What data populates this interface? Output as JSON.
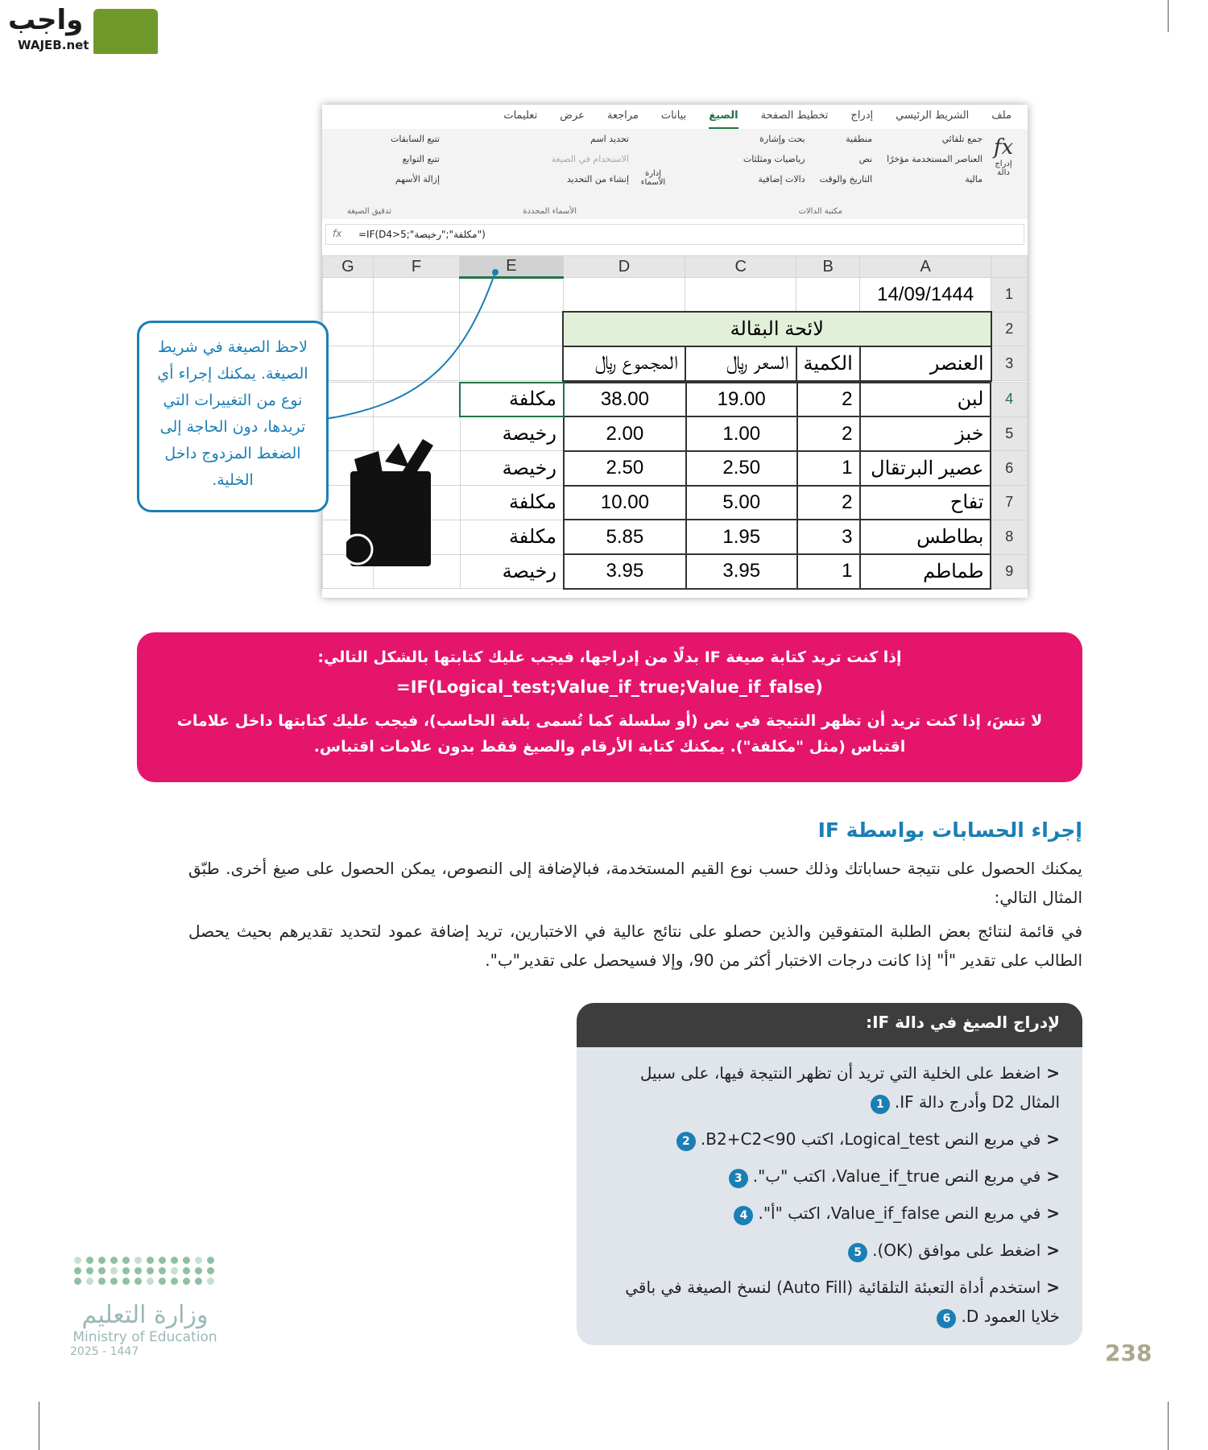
{
  "logo": {
    "arabic": "واجب",
    "latin": "WAJEB.net"
  },
  "excel": {
    "tabs": [
      "ملف",
      "الشريط الرئيسي",
      "إدراج",
      "تخطيط الصفحة",
      "الصيغ",
      "بيانات",
      "مراجعة",
      "عرض",
      "تعليمات"
    ],
    "active_tab": "الصيغ",
    "ribbon": {
      "insert_function": "إدراج دالة",
      "library": [
        "جمع تلقائي",
        "العناصر المستخدمة مؤخرًا",
        "مالية",
        "منطقية",
        "نص",
        "التاريخ والوقت",
        "بحث وإشارة",
        "رياضيات ومثلثات",
        "دالات إضافية"
      ],
      "library_label": "مكتبة الدالات",
      "name_manager": "إدارة الأسماء",
      "names": [
        "تحديد اسم",
        "الاستخدام في الصيغة",
        "إنشاء من التحديد"
      ],
      "names_label": "الأسماء المحددة",
      "audit": [
        "تتبع السابقات",
        "تتبع التوابع",
        "إزالة الأسهم"
      ],
      "audit_label": "تدقيق الصيغة"
    },
    "formula": "=IF(D4>5;\"مكلفة\";\"رخيصة\")",
    "columns": [
      "G",
      "F",
      "E",
      "D",
      "C",
      "B",
      "A"
    ],
    "date": "14/09/1444",
    "sheet_title": "لائحة البقالة",
    "headers": {
      "item": "العنصر",
      "qty": "الكمية",
      "price": "السعر ﷼",
      "total": "المجموع ﷼"
    },
    "rows": [
      {
        "n": "4",
        "item": "لبن",
        "qty": "2",
        "price": "19.00",
        "total": "38.00",
        "e": "مكلفة"
      },
      {
        "n": "5",
        "item": "خبز",
        "qty": "2",
        "price": "1.00",
        "total": "2.00",
        "e": "رخيصة"
      },
      {
        "n": "6",
        "item": "عصير البرتقال",
        "qty": "1",
        "price": "2.50",
        "total": "2.50",
        "e": "رخيصة"
      },
      {
        "n": "7",
        "item": "تفاح",
        "qty": "2",
        "price": "5.00",
        "total": "10.00",
        "e": "مكلفة"
      },
      {
        "n": "8",
        "item": "بطاطس",
        "qty": "3",
        "price": "1.95",
        "total": "5.85",
        "e": "مكلفة"
      },
      {
        "n": "9",
        "item": "طماطم",
        "qty": "1",
        "price": "3.95",
        "total": "3.95",
        "e": "رخيصة"
      }
    ],
    "row_numbers": [
      "1",
      "2",
      "3"
    ]
  },
  "callout": "لاحظ الصيغة في شريط الصيغة. يمكنك إجراء أي نوع من التغييرات التي تريدها، دون الحاجة إلى الضغط المزدوج داخل الخلية.",
  "note": {
    "line1": "إذا كنت تريد كتابة صيغة IF بدلًا من إدراجها، فيجب عليك كتابتها بالشكل التالي:",
    "formula": "=IF(Logical_test;Value_if_true;Value_if_false)",
    "line3": "لا تنسَ، إذا كنت تريد أن تظهر النتيجة في نص (أو سلسلة كما تُسمى بلغة الحاسب)، فيجب عليك كتابتها داخل علامات اقتباس (مثل \"مكلفة\"). يمكنك كتابة الأرقام والصيغ فقط بدون علامات اقتباس."
  },
  "section": {
    "title": "إجراء الحسابات بواسطة IF",
    "p1": "يمكنك الحصول على نتيجة حساباتك وذلك حسب نوع القيم المستخدمة، فبالإضافة إلى النصوص، يمكن الحصول على صيغ أخرى. طبّق المثال التالي:",
    "p2": "في قائمة لنتائج بعض الطلبة المتفوقين والذين حصلو على نتائج عالية في الاختبارين، تريد إضافة عمود لتحديد تقديرهم بحيث يحصل الطالب على تقدير \"أ\" إذا كانت درجات الاختبار أكثر من 90، وإلا فسيحصل على تقدير\"ب\"."
  },
  "steps": {
    "title": "لإدراج الصيغ في دالة IF:",
    "items": [
      {
        "text": "اضغط على الخلية التي تريد أن تظهر النتيجة فيها، على سبيل المثال D2 وأدرج دالة IF.",
        "badge": "1"
      },
      {
        "text": "في مربع النص Logical_test، اكتب B2+C2<90.",
        "badge": "2"
      },
      {
        "text": "في مربع النص Value_if_true، اكتب \"ب\".",
        "badge": "3"
      },
      {
        "text": "في مربع النص Value_if_false، اكتب \"أ\".",
        "badge": "4"
      },
      {
        "text": "اضغط على موافق (OK).",
        "badge": "5"
      },
      {
        "text": "استخدم أداة التعبئة التلقائية (Auto Fill) لنسخ الصيغة في باقي خلايا العمود D.",
        "badge": "6"
      }
    ]
  },
  "ministry": {
    "arabic": "وزارة التعليم",
    "english": "Ministry of Education",
    "year": "2025 - 1447"
  },
  "page_number": "238",
  "colors": {
    "pink": "#e5156b",
    "blue": "#1a7fb5",
    "excel_green": "#217346"
  }
}
